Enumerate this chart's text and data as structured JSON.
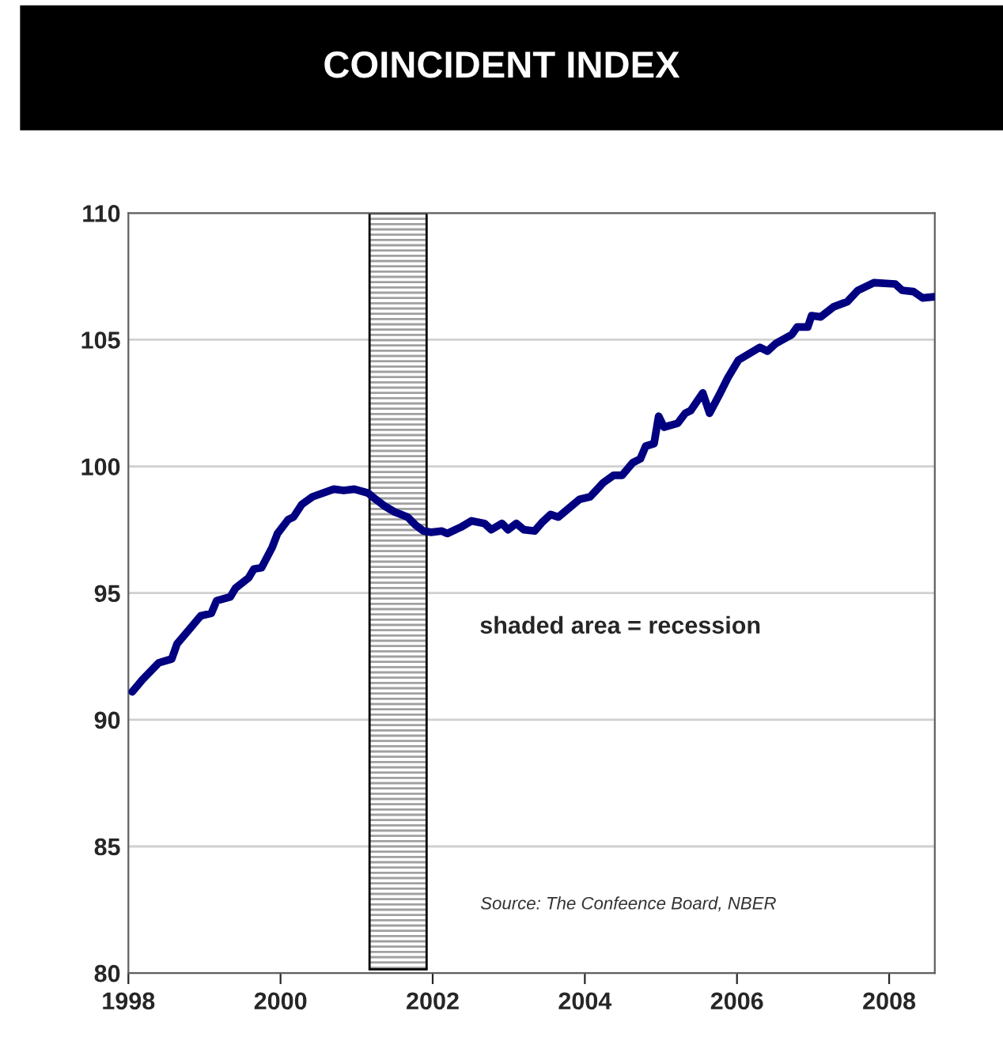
{
  "chart_data": {
    "type": "line",
    "title": "COINCIDENT INDEX",
    "x": [
      1998.05,
      1998.19,
      1998.4,
      1998.57,
      1998.64,
      1998.81,
      1998.95,
      1999.09,
      1999.16,
      1999.34,
      1999.41,
      1999.58,
      1999.65,
      1999.75,
      1999.89,
      1999.96,
      2000.1,
      2000.17,
      2000.28,
      2000.42,
      2000.7,
      2000.83,
      2000.97,
      2001.15,
      2001.25,
      2001.36,
      2001.5,
      2001.67,
      2001.77,
      2001.88,
      2001.98,
      2002.12,
      2002.19,
      2002.37,
      2002.51,
      2002.68,
      2002.77,
      2002.91,
      2002.99,
      2003.1,
      2003.2,
      2003.34,
      2003.44,
      2003.55,
      2003.65,
      2003.93,
      2004.07,
      2004.24,
      2004.38,
      2004.49,
      2004.63,
      2004.73,
      2004.8,
      2004.91,
      2004.97,
      2005.04,
      2005.22,
      2005.32,
      2005.39,
      2005.55,
      2005.64,
      2005.78,
      2005.88,
      2006.02,
      2006.16,
      2006.3,
      2006.4,
      2006.51,
      2006.72,
      2006.79,
      2006.93,
      2006.98,
      2007.1,
      2007.27,
      2007.45,
      2007.59,
      2007.8,
      2008.08,
      2008.17,
      2008.32,
      2008.44,
      2008.6
    ],
    "series": [
      {
        "color": "#000080",
        "values": [
          91.1,
          91.6,
          92.25,
          92.4,
          93.0,
          93.6,
          94.1,
          94.2,
          94.7,
          94.85,
          95.2,
          95.6,
          95.95,
          96.0,
          96.8,
          97.35,
          97.9,
          98.0,
          98.5,
          98.8,
          99.1,
          99.05,
          99.1,
          98.95,
          98.7,
          98.45,
          98.2,
          98.0,
          97.7,
          97.45,
          97.4,
          97.45,
          97.35,
          97.6,
          97.85,
          97.75,
          97.5,
          97.75,
          97.5,
          97.75,
          97.5,
          97.45,
          97.8,
          98.1,
          98.0,
          98.7,
          98.8,
          99.35,
          99.65,
          99.65,
          100.15,
          100.3,
          100.8,
          100.9,
          101.98,
          101.55,
          101.7,
          102.1,
          102.2,
          102.9,
          102.1,
          102.9,
          103.5,
          104.2,
          104.45,
          104.7,
          104.55,
          104.85,
          105.2,
          105.5,
          105.5,
          105.95,
          105.9,
          106.3,
          106.5,
          106.95,
          107.25,
          107.2,
          106.95,
          106.9,
          106.65,
          106.7
        ]
      }
    ],
    "xlim": [
      1998,
      2008.6
    ],
    "xticks": [
      1998,
      2000,
      2002,
      2004,
      2006,
      2008
    ],
    "ylim": [
      80,
      110
    ],
    "yticks": [
      80,
      85,
      90,
      95,
      100,
      105,
      110
    ],
    "grid": "y",
    "bands": [
      {
        "axis": "x",
        "from": 2001.17,
        "to": 2001.92,
        "color": "#a0a0a0"
      }
    ],
    "annotations": [
      "shaded area = recession",
      "Source: The Confeence Board, NBER"
    ]
  }
}
